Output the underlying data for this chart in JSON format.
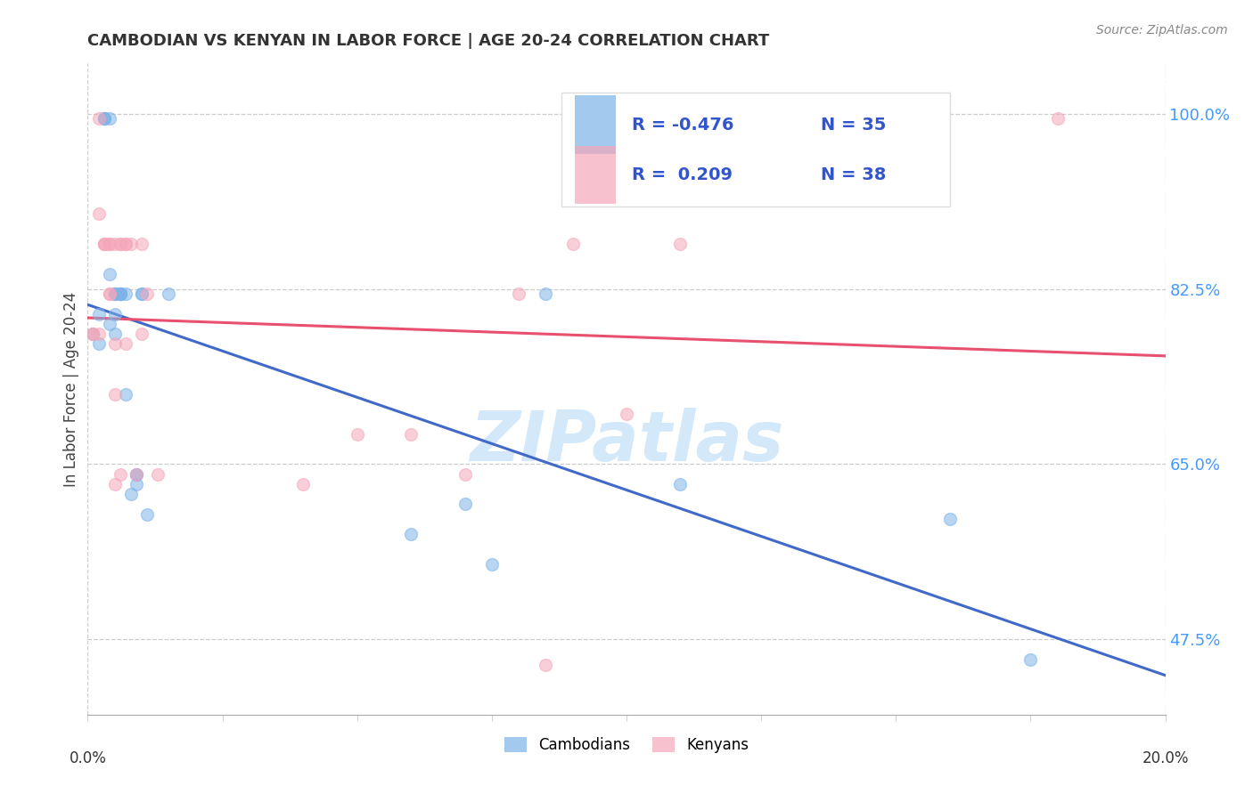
{
  "title": "CAMBODIAN VS KENYAN IN LABOR FORCE | AGE 20-24 CORRELATION CHART",
  "source": "Source: ZipAtlas.com",
  "ylabel": "In Labor Force | Age 20-24",
  "watermark": "ZIPatlas",
  "cambodian_x": [
    0.001,
    0.002,
    0.002,
    0.003,
    0.003,
    0.003,
    0.004,
    0.004,
    0.004,
    0.005,
    0.005,
    0.005,
    0.005,
    0.005,
    0.006,
    0.006,
    0.006,
    0.006,
    0.007,
    0.007,
    0.008,
    0.009,
    0.009,
    0.009,
    0.01,
    0.01,
    0.011,
    0.015,
    0.06,
    0.07,
    0.075,
    0.085,
    0.11,
    0.16,
    0.175
  ],
  "cambodian_y": [
    0.78,
    0.8,
    0.77,
    0.995,
    0.995,
    0.995,
    0.995,
    0.84,
    0.79,
    0.82,
    0.82,
    0.8,
    0.82,
    0.78,
    0.82,
    0.82,
    0.82,
    0.82,
    0.72,
    0.82,
    0.62,
    0.63,
    0.64,
    0.64,
    0.82,
    0.82,
    0.6,
    0.82,
    0.58,
    0.61,
    0.55,
    0.82,
    0.63,
    0.595,
    0.455
  ],
  "kenyan_x": [
    0.001,
    0.001,
    0.002,
    0.002,
    0.002,
    0.003,
    0.003,
    0.003,
    0.004,
    0.004,
    0.004,
    0.004,
    0.005,
    0.005,
    0.005,
    0.005,
    0.006,
    0.006,
    0.006,
    0.007,
    0.007,
    0.007,
    0.008,
    0.009,
    0.01,
    0.01,
    0.011,
    0.013,
    0.04,
    0.05,
    0.06,
    0.07,
    0.08,
    0.085,
    0.09,
    0.1,
    0.11,
    0.18
  ],
  "kenyan_y": [
    0.78,
    0.78,
    0.995,
    0.9,
    0.78,
    0.87,
    0.87,
    0.87,
    0.87,
    0.82,
    0.87,
    0.82,
    0.87,
    0.77,
    0.72,
    0.63,
    0.87,
    0.87,
    0.64,
    0.87,
    0.77,
    0.87,
    0.87,
    0.64,
    0.87,
    0.78,
    0.82,
    0.64,
    0.63,
    0.68,
    0.68,
    0.64,
    0.82,
    0.45,
    0.87,
    0.7,
    0.87,
    0.995
  ],
  "cambodian_color": "#7EB3E8",
  "kenyan_color": "#F4A7B9",
  "cambodian_line_color": "#4169C8",
  "kenyan_line_color": "#E85070",
  "legend_R_cambodian": "-0.476",
  "legend_N_cambodian": "35",
  "legend_R_kenyan": "0.209",
  "legend_N_kenyan": "38",
  "xlim": [
    0.0,
    0.2
  ],
  "ylim": [
    0.4,
    1.05
  ],
  "ytick_vals": [
    1.0,
    0.825,
    0.65,
    0.475
  ],
  "ytick_labels": [
    "100.0%",
    "82.5%",
    "65.0%",
    "47.5%"
  ],
  "xtick_vals": [
    0.0,
    0.025,
    0.05,
    0.075,
    0.1,
    0.125,
    0.15,
    0.175,
    0.2
  ],
  "marker_size": 100,
  "alpha": 0.55,
  "line_width": 2.2
}
